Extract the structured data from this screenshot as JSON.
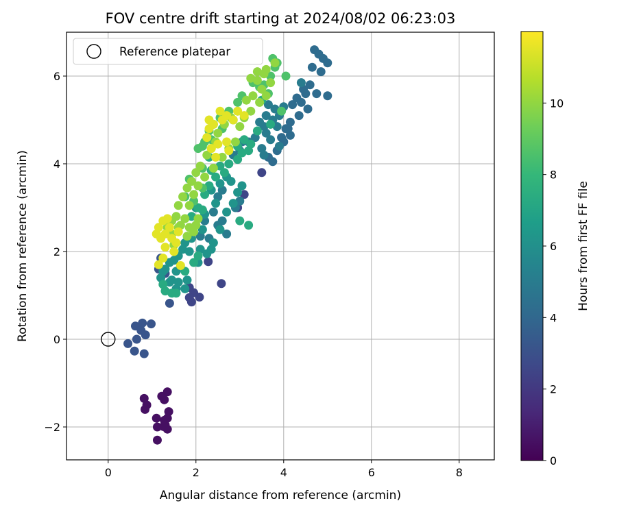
{
  "chart_data": {
    "type": "scatter",
    "title": "FOV centre drift starting at 2024/08/02 06:23:03",
    "xlabel": "Angular distance from reference (arcmin)",
    "ylabel": "Rotation from reference (arcmin)",
    "xlim": [
      -0.95,
      8.8
    ],
    "ylim": [
      -2.75,
      7.0
    ],
    "xticks": [
      0,
      2,
      4,
      6,
      8
    ],
    "yticks": [
      -2,
      0,
      2,
      4,
      6
    ],
    "xtick_labels": [
      "0",
      "2",
      "4",
      "6",
      "8"
    ],
    "ytick_labels": [
      "−2",
      "0",
      "2",
      "4",
      "6"
    ],
    "grid": true,
    "legend": {
      "position": "upper left",
      "entries": [
        {
          "label": "Reference platepar",
          "marker": "open-circle"
        }
      ]
    },
    "reference_point": {
      "x": 0,
      "y": 0
    },
    "colorbar": {
      "label": "Hours from first FF file",
      "min": 0,
      "max": 12,
      "ticks": [
        0,
        2,
        4,
        6,
        8,
        10
      ],
      "colormap": "viridis",
      "stops": [
        "#440154",
        "#482878",
        "#3e4989",
        "#31688e",
        "#26828e",
        "#1f9e89",
        "#35b779",
        "#6ece58",
        "#b5de2b",
        "#fde725"
      ]
    },
    "series": [
      {
        "t": 0.5,
        "points": [
          [
            1.35,
            -1.2
          ],
          [
            1.28,
            -1.38
          ],
          [
            1.22,
            -1.3
          ],
          [
            0.82,
            -1.35
          ],
          [
            0.88,
            -1.5
          ],
          [
            0.84,
            -1.6
          ],
          [
            1.38,
            -1.65
          ],
          [
            1.35,
            -1.8
          ],
          [
            1.1,
            -1.8
          ],
          [
            1.28,
            -1.85
          ],
          [
            1.3,
            -1.95
          ],
          [
            1.35,
            -2.05
          ],
          [
            1.12,
            -2.0
          ],
          [
            1.26,
            -1.99
          ],
          [
            1.12,
            -2.3
          ]
        ]
      },
      {
        "t": 2.5,
        "points": [
          [
            2.58,
            1.27
          ],
          [
            1.9,
            0.85
          ],
          [
            1.95,
            1.06
          ],
          [
            1.85,
            1.18
          ],
          [
            2.08,
            0.96
          ],
          [
            1.85,
            0.95
          ],
          [
            2.28,
            1.77
          ],
          [
            3.5,
            3.8
          ],
          [
            3.1,
            3.3
          ],
          [
            2.95,
            3.0
          ]
        ]
      },
      {
        "t": 3.2,
        "points": [
          [
            0.45,
            -0.1
          ],
          [
            0.6,
            -0.27
          ],
          [
            0.65,
            0.0
          ],
          [
            0.62,
            0.3
          ],
          [
            0.75,
            0.2
          ],
          [
            0.78,
            0.37
          ],
          [
            0.85,
            0.1
          ],
          [
            0.98,
            0.35
          ],
          [
            0.82,
            -0.33
          ],
          [
            1.15,
            1.6
          ],
          [
            1.2,
            1.85
          ],
          [
            1.3,
            1.5
          ],
          [
            1.4,
            0.82
          ]
        ]
      },
      {
        "t": 4.2,
        "points": [
          [
            4.7,
            6.6
          ],
          [
            4.8,
            6.5
          ],
          [
            4.9,
            6.4
          ],
          [
            5.0,
            6.3
          ],
          [
            4.65,
            6.2
          ],
          [
            4.85,
            6.1
          ],
          [
            4.6,
            5.8
          ],
          [
            4.75,
            5.6
          ],
          [
            5.0,
            5.55
          ],
          [
            4.5,
            5.6
          ],
          [
            4.3,
            5.5
          ],
          [
            4.2,
            5.35
          ],
          [
            4.45,
            5.7
          ],
          [
            4.4,
            5.4
          ],
          [
            4.55,
            5.25
          ],
          [
            4.35,
            5.1
          ],
          [
            4.15,
            4.95
          ],
          [
            4.05,
            4.8
          ],
          [
            4.15,
            4.65
          ],
          [
            4.0,
            4.5
          ],
          [
            3.85,
            4.3
          ],
          [
            3.75,
            4.05
          ],
          [
            3.65,
            4.15
          ],
          [
            3.95,
            4.6
          ],
          [
            4.1,
            4.8
          ]
        ]
      },
      {
        "t": 5.0,
        "points": [
          [
            3.6,
            4.7
          ],
          [
            3.7,
            4.55
          ],
          [
            3.9,
            4.4
          ],
          [
            3.85,
            4.85
          ],
          [
            3.75,
            5.0
          ],
          [
            3.55,
            4.85
          ],
          [
            3.45,
            4.95
          ],
          [
            3.35,
            4.6
          ],
          [
            3.5,
            4.35
          ],
          [
            3.9,
            5.1
          ],
          [
            3.8,
            5.25
          ],
          [
            3.65,
            5.35
          ],
          [
            3.6,
            5.1
          ],
          [
            3.2,
            4.5
          ],
          [
            3.0,
            4.3
          ],
          [
            2.85,
            4.2
          ],
          [
            3.05,
            4.5
          ],
          [
            4.0,
            5.3
          ],
          [
            4.4,
            5.85
          ],
          [
            3.55,
            4.2
          ],
          [
            2.6,
            3.4
          ],
          [
            2.5,
            3.25
          ],
          [
            2.4,
            2.9
          ],
          [
            2.6,
            2.7
          ],
          [
            2.7,
            2.4
          ],
          [
            2.3,
            2.3
          ],
          [
            2.1,
            2.35
          ],
          [
            2.2,
            2.7
          ],
          [
            2.5,
            2.6
          ],
          [
            2.9,
            3.0
          ],
          [
            3.0,
            3.15
          ]
        ]
      },
      {
        "t": 6.2,
        "points": [
          [
            2.7,
            3.7
          ],
          [
            2.8,
            3.6
          ],
          [
            2.55,
            3.55
          ],
          [
            2.35,
            3.4
          ],
          [
            2.45,
            3.1
          ],
          [
            2.2,
            2.85
          ],
          [
            2.0,
            3.0
          ],
          [
            2.15,
            2.5
          ],
          [
            2.0,
            2.6
          ],
          [
            1.9,
            2.3
          ],
          [
            1.75,
            2.2
          ],
          [
            1.7,
            2.05
          ],
          [
            1.85,
            2.0
          ],
          [
            2.1,
            2.05
          ],
          [
            1.6,
            1.9
          ],
          [
            1.5,
            1.8
          ],
          [
            1.4,
            1.75
          ],
          [
            1.3,
            1.6
          ],
          [
            1.55,
            1.55
          ],
          [
            1.45,
            1.35
          ],
          [
            1.25,
            1.55
          ],
          [
            1.2,
            1.4
          ],
          [
            1.4,
            1.3
          ],
          [
            1.6,
            1.3
          ],
          [
            1.55,
            1.15
          ],
          [
            1.75,
            1.15
          ],
          [
            1.8,
            1.35
          ],
          [
            2.05,
            1.75
          ],
          [
            2.25,
            1.95
          ],
          [
            2.35,
            2.05
          ],
          [
            2.4,
            2.2
          ],
          [
            2.55,
            2.5
          ],
          [
            2.7,
            2.9
          ],
          [
            2.85,
            3.1
          ],
          [
            2.95,
            3.35
          ],
          [
            3.05,
            3.5
          ]
        ]
      },
      {
        "t": 7.3,
        "points": [
          [
            2.95,
            4.1
          ],
          [
            3.05,
            4.25
          ],
          [
            3.2,
            4.3
          ],
          [
            3.25,
            4.45
          ],
          [
            3.1,
            4.55
          ],
          [
            2.95,
            4.4
          ],
          [
            2.75,
            4.0
          ],
          [
            2.65,
            3.8
          ],
          [
            2.45,
            3.7
          ],
          [
            2.3,
            3.5
          ],
          [
            2.2,
            3.3
          ],
          [
            2.05,
            3.0
          ],
          [
            1.9,
            2.8
          ],
          [
            2.15,
            2.95
          ],
          [
            3.0,
            2.7
          ],
          [
            3.2,
            2.6
          ],
          [
            2.55,
            3.95
          ],
          [
            2.35,
            3.85
          ],
          [
            2.3,
            4.15
          ],
          [
            1.55,
            1.05
          ],
          [
            1.45,
            1.05
          ],
          [
            1.3,
            1.1
          ],
          [
            1.25,
            1.25
          ],
          [
            1.75,
            1.55
          ],
          [
            1.95,
            1.75
          ],
          [
            2.05,
            1.9
          ],
          [
            3.4,
            4.75
          ],
          [
            3.7,
            4.9
          ],
          [
            3.5,
            5.45
          ]
        ]
      },
      {
        "t": 8.6,
        "points": [
          [
            3.75,
            6.4
          ],
          [
            3.85,
            6.3
          ],
          [
            3.8,
            6.2
          ],
          [
            3.7,
            6.0
          ],
          [
            3.55,
            5.8
          ],
          [
            3.45,
            5.75
          ],
          [
            3.3,
            5.85
          ],
          [
            3.65,
            5.6
          ],
          [
            3.95,
            5.2
          ],
          [
            3.05,
            5.55
          ],
          [
            2.95,
            5.4
          ],
          [
            2.75,
            5.2
          ],
          [
            2.55,
            5.05
          ],
          [
            2.4,
            4.9
          ],
          [
            2.3,
            4.75
          ],
          [
            2.2,
            4.5
          ],
          [
            2.05,
            4.35
          ],
          [
            2.15,
            4.4
          ],
          [
            2.35,
            4.55
          ],
          [
            2.6,
            4.8
          ],
          [
            2.85,
            5.0
          ],
          [
            4.05,
            6.0
          ],
          [
            2.15,
            3.9
          ],
          [
            1.85,
            3.65
          ],
          [
            1.75,
            3.25
          ],
          [
            1.95,
            3.15
          ],
          [
            2.15,
            3.45
          ]
        ]
      },
      {
        "t": 10.0,
        "points": [
          [
            3.8,
            6.3
          ],
          [
            3.6,
            6.15
          ],
          [
            3.4,
            6.1
          ],
          [
            3.25,
            5.95
          ],
          [
            3.5,
            5.7
          ],
          [
            3.3,
            5.55
          ],
          [
            3.15,
            5.45
          ],
          [
            2.95,
            5.2
          ],
          [
            2.8,
            5.05
          ],
          [
            2.65,
            4.9
          ],
          [
            2.5,
            4.7
          ],
          [
            2.45,
            4.5
          ],
          [
            2.35,
            4.35
          ],
          [
            2.25,
            4.2
          ],
          [
            2.1,
            3.95
          ],
          [
            2.0,
            3.8
          ],
          [
            1.9,
            3.6
          ],
          [
            1.8,
            3.45
          ],
          [
            1.7,
            3.25
          ],
          [
            1.6,
            3.05
          ],
          [
            1.55,
            2.8
          ],
          [
            1.45,
            2.7
          ],
          [
            1.6,
            2.55
          ],
          [
            1.75,
            2.75
          ],
          [
            1.85,
            3.05
          ],
          [
            1.95,
            3.3
          ],
          [
            2.05,
            3.5
          ],
          [
            2.2,
            3.7
          ],
          [
            2.4,
            3.9
          ],
          [
            2.6,
            4.15
          ],
          [
            2.75,
            4.35
          ],
          [
            2.9,
            4.5
          ],
          [
            3.0,
            4.85
          ],
          [
            3.1,
            5.05
          ],
          [
            3.25,
            5.2
          ],
          [
            3.45,
            5.4
          ],
          [
            3.6,
            5.55
          ],
          [
            3.7,
            5.85
          ],
          [
            3.4,
            5.9
          ],
          [
            3.55,
            6.05
          ],
          [
            1.85,
            2.55
          ],
          [
            1.95,
            2.45
          ],
          [
            2.05,
            2.75
          ],
          [
            2.0,
            2.6
          ],
          [
            1.8,
            2.35
          ],
          [
            1.35,
            2.55
          ],
          [
            1.45,
            2.4
          ],
          [
            1.65,
            2.6
          ],
          [
            1.5,
            2.15
          ]
        ]
      },
      {
        "t": 11.5,
        "points": [
          [
            2.55,
            5.2
          ],
          [
            2.7,
            5.1
          ],
          [
            2.6,
            5.0
          ],
          [
            2.4,
            4.9
          ],
          [
            2.3,
            4.8
          ],
          [
            2.25,
            4.6
          ],
          [
            2.5,
            4.45
          ],
          [
            2.7,
            4.5
          ],
          [
            2.75,
            4.3
          ],
          [
            2.45,
            4.15
          ],
          [
            2.35,
            4.35
          ],
          [
            2.3,
            5.0
          ],
          [
            2.95,
            5.2
          ],
          [
            3.1,
            5.1
          ],
          [
            2.85,
            5.0
          ],
          [
            1.35,
            2.75
          ],
          [
            1.25,
            2.7
          ],
          [
            1.4,
            2.55
          ],
          [
            1.3,
            2.4
          ],
          [
            1.2,
            2.3
          ],
          [
            1.1,
            2.4
          ],
          [
            1.15,
            2.55
          ],
          [
            1.45,
            2.3
          ],
          [
            1.55,
            2.2
          ],
          [
            1.3,
            2.1
          ],
          [
            1.25,
            1.85
          ],
          [
            1.15,
            1.7
          ],
          [
            1.65,
            1.68
          ],
          [
            1.5,
            2.0
          ],
          [
            1.6,
            2.45
          ]
        ]
      }
    ]
  }
}
